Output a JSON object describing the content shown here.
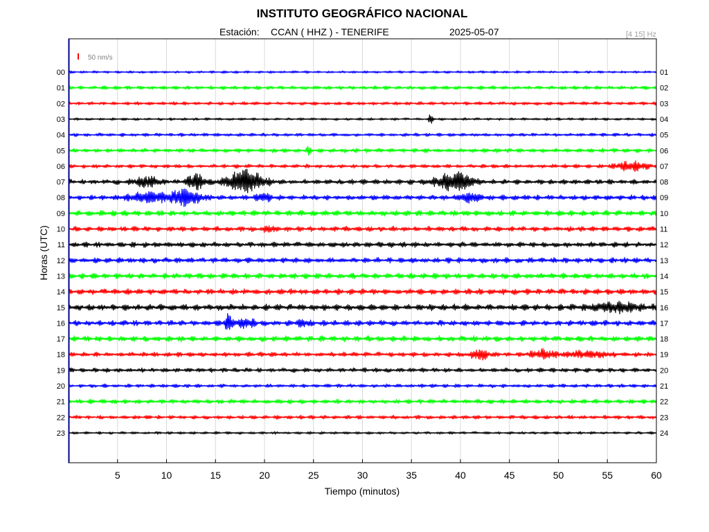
{
  "header": {
    "title": "INSTITUTO GEOGRÁFICO NACIONAL",
    "station_label": "Estación:",
    "station_value": "CCAN ( HHZ ) - TENERIFE",
    "date": "2025-05-07",
    "filter": "[4 15] Hz"
  },
  "scale_label": "50 nm/s",
  "colors": {
    "scale_marker": "#ff0000",
    "frame": "#000000",
    "frame_left": "#00008b",
    "cycle": [
      "#0000ff",
      "#00ff00",
      "#ff0000",
      "#000000"
    ]
  },
  "chart_data": {
    "type": "seismogram",
    "xlabel": "Tiempo (minutos)",
    "ylabel": "Horas (UTC)",
    "xlim": [
      0,
      60
    ],
    "xticks": [
      "5",
      "10",
      "15",
      "20",
      "25",
      "30",
      "35",
      "40",
      "45",
      "50",
      "55",
      "60"
    ],
    "grid": "vertical",
    "left_labels": [
      "00",
      "01",
      "02",
      "03",
      "04",
      "05",
      "06",
      "07",
      "08",
      "09",
      "10",
      "11",
      "12",
      "13",
      "14",
      "15",
      "16",
      "17",
      "18",
      "19",
      "20",
      "21",
      "22",
      "23"
    ],
    "right_labels": [
      "01",
      "02",
      "03",
      "04",
      "05",
      "06",
      "07",
      "08",
      "09",
      "10",
      "11",
      "12",
      "13",
      "14",
      "15",
      "16",
      "17",
      "18",
      "19",
      "20",
      "21",
      "22",
      "23",
      "24"
    ],
    "traces": [
      {
        "hour": "00",
        "noise": 1.5,
        "events": []
      },
      {
        "hour": "01",
        "noise": 2.2,
        "events": []
      },
      {
        "hour": "02",
        "noise": 2.0,
        "events": []
      },
      {
        "hour": "03",
        "noise": 1.5,
        "events": [
          {
            "t": 37.0,
            "amp": 6,
            "dur": 0.25
          }
        ]
      },
      {
        "hour": "04",
        "noise": 2.0,
        "events": []
      },
      {
        "hour": "05",
        "noise": 2.5,
        "events": [
          {
            "t": 24.5,
            "amp": 5,
            "dur": 0.2
          }
        ]
      },
      {
        "hour": "06",
        "noise": 2.3,
        "events": [
          {
            "t": 57.5,
            "amp": 6,
            "dur": 1.5
          }
        ]
      },
      {
        "hour": "07",
        "noise": 3.0,
        "events": [
          {
            "t": 8.0,
            "amp": 7,
            "dur": 1.2
          },
          {
            "t": 13.0,
            "amp": 10,
            "dur": 0.8
          },
          {
            "t": 18.0,
            "amp": 15,
            "dur": 1.8
          },
          {
            "t": 39.5,
            "amp": 13,
            "dur": 1.8
          }
        ]
      },
      {
        "hour": "08",
        "noise": 3.0,
        "events": [
          {
            "t": 8.0,
            "amp": 6,
            "dur": 2.0
          },
          {
            "t": 12.0,
            "amp": 11,
            "dur": 1.5
          },
          {
            "t": 20.0,
            "amp": 5,
            "dur": 0.7
          },
          {
            "t": 41.0,
            "amp": 6,
            "dur": 1.0
          }
        ]
      },
      {
        "hour": "09",
        "noise": 3.3,
        "events": []
      },
      {
        "hour": "10",
        "noise": 3.0,
        "events": [
          {
            "t": 20.5,
            "amp": 4,
            "dur": 0.5
          }
        ]
      },
      {
        "hour": "11",
        "noise": 3.2,
        "events": []
      },
      {
        "hour": "12",
        "noise": 3.2,
        "events": []
      },
      {
        "hour": "13",
        "noise": 3.4,
        "events": []
      },
      {
        "hour": "14",
        "noise": 3.4,
        "events": []
      },
      {
        "hour": "15",
        "noise": 3.8,
        "events": [
          {
            "t": 56.0,
            "amp": 5,
            "dur": 2.5
          }
        ]
      },
      {
        "hour": "16",
        "noise": 3.3,
        "events": [
          {
            "t": 16.3,
            "amp": 14,
            "dur": 0.35
          },
          {
            "t": 18.0,
            "amp": 5,
            "dur": 1.0
          },
          {
            "t": 24.0,
            "amp": 4,
            "dur": 0.5
          }
        ]
      },
      {
        "hour": "17",
        "noise": 3.4,
        "events": []
      },
      {
        "hour": "18",
        "noise": 2.8,
        "events": [
          {
            "t": 42.0,
            "amp": 6,
            "dur": 0.9
          },
          {
            "t": 48.5,
            "amp": 5,
            "dur": 1.2
          },
          {
            "t": 53.0,
            "amp": 4,
            "dur": 2.0
          }
        ]
      },
      {
        "hour": "19",
        "noise": 2.6,
        "events": []
      },
      {
        "hour": "20",
        "noise": 2.2,
        "events": []
      },
      {
        "hour": "21",
        "noise": 2.6,
        "events": []
      },
      {
        "hour": "22",
        "noise": 2.3,
        "events": []
      },
      {
        "hour": "23",
        "noise": 1.6,
        "events": []
      }
    ]
  }
}
